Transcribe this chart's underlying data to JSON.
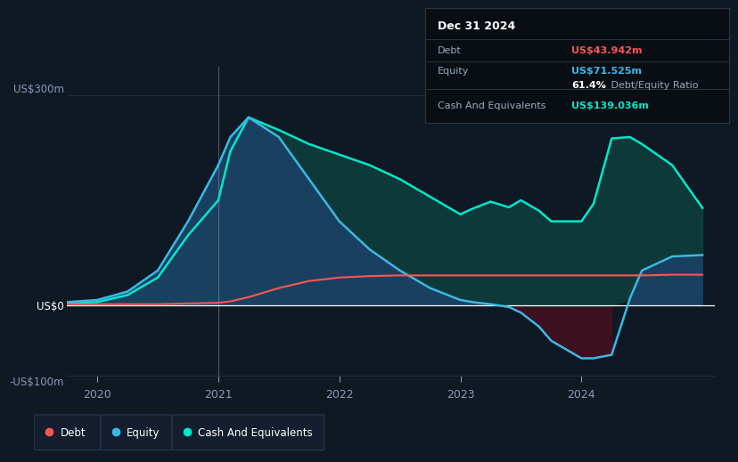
{
  "bg_color": "#0f1923",
  "plot_bg": "#0f1923",
  "grid_color": "#1e2d3d",
  "zero_line_color": "#ffffff",
  "y_label_300": "US$300m",
  "y_label_0": "US$0",
  "y_label_neg100": "-US$100m",
  "x_ticks": [
    2020,
    2021,
    2022,
    2023,
    2024
  ],
  "tooltip_date": "Dec 31 2024",
  "tooltip_debt_label": "Debt",
  "tooltip_debt_value": "US$43.942m",
  "tooltip_equity_label": "Equity",
  "tooltip_equity_value": "US$71.525m",
  "tooltip_ratio": "61.4% Debt/Equity Ratio",
  "tooltip_cash_label": "Cash And Equivalents",
  "tooltip_cash_value": "US$139.036m",
  "debt_color": "#ff5555",
  "equity_color": "#3cb8e8",
  "cash_color": "#00e8cc",
  "legend_bg": "#141e2e",
  "legend_border": "#2a3a50",
  "time_points": [
    2019.75,
    2020.0,
    2020.25,
    2020.5,
    2020.75,
    2021.0,
    2021.1,
    2021.25,
    2021.5,
    2021.75,
    2022.0,
    2022.25,
    2022.5,
    2022.75,
    2023.0,
    2023.1,
    2023.25,
    2023.4,
    2023.5,
    2023.65,
    2023.75,
    2024.0,
    2024.1,
    2024.25,
    2024.4,
    2024.5,
    2024.75,
    2025.0
  ],
  "debt_values": [
    2,
    2,
    2,
    2,
    3,
    4,
    6,
    12,
    25,
    35,
    40,
    42,
    43,
    43,
    43,
    43,
    43,
    43,
    43,
    43,
    43,
    43,
    43,
    43,
    43,
    43,
    44,
    44
  ],
  "equity_values": [
    5,
    8,
    20,
    50,
    120,
    200,
    240,
    268,
    240,
    180,
    120,
    80,
    50,
    25,
    8,
    5,
    2,
    -2,
    -10,
    -30,
    -50,
    -75,
    -75,
    -70,
    10,
    50,
    70,
    72
  ],
  "cash_values": [
    3,
    5,
    15,
    40,
    100,
    150,
    220,
    268,
    250,
    230,
    215,
    200,
    180,
    155,
    130,
    138,
    148,
    140,
    150,
    135,
    120,
    120,
    145,
    238,
    240,
    230,
    200,
    139
  ],
  "ylim": [
    -100,
    340
  ],
  "xlim": [
    2019.75,
    2025.1
  ]
}
